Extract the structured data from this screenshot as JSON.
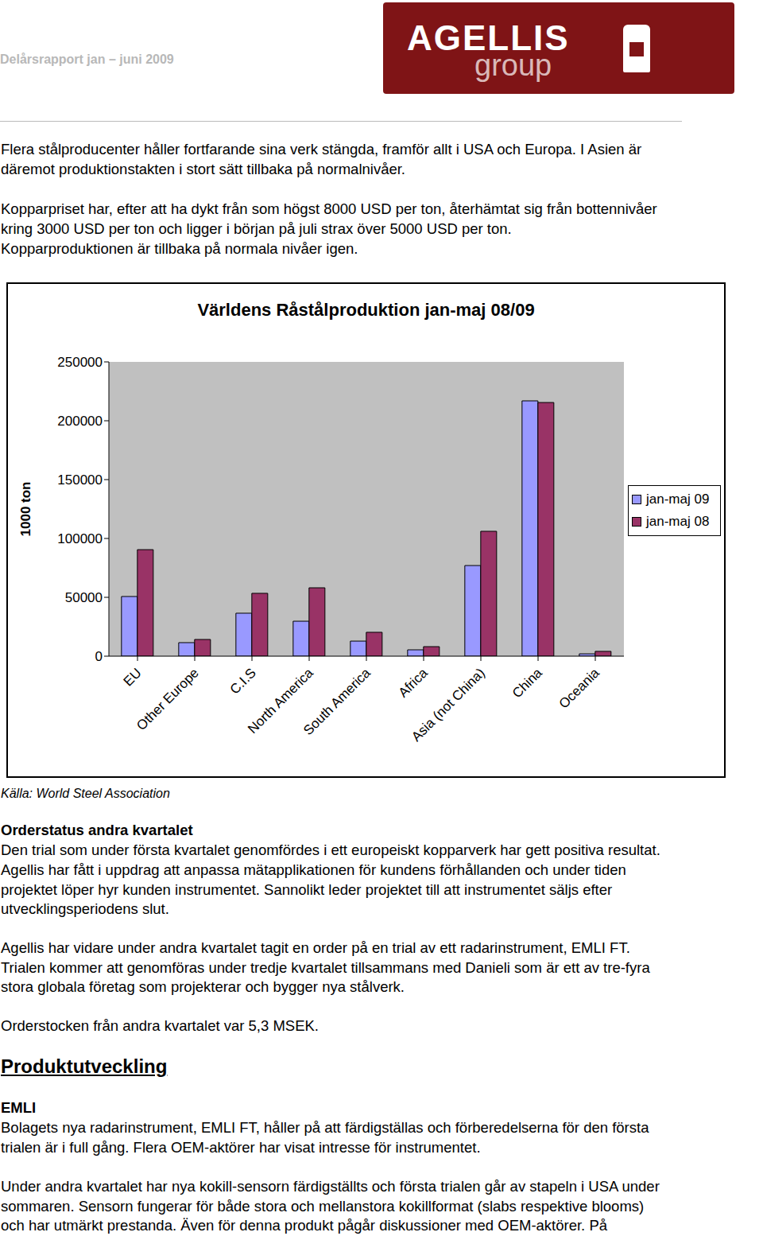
{
  "header": {
    "title": "Delårsrapport jan – juni 2009",
    "logo": {
      "name": "AGELLIS",
      "sub": "group"
    }
  },
  "intro_paragraphs": [
    [
      "Flera stålproducenter håller fortfarande sina verk stängda, framför allt i USA och Europa. I Asien är",
      "däremot produktionstakten i stort sätt tillbaka på normalnivåer."
    ],
    [
      "Kopparpriset har, efter att ha dykt från som högst 8000 USD per ton, återhämtat sig från bottennivåer",
      "kring 3000 USD per ton och ligger i början på juli strax över 5000 USD per ton.",
      "Kopparproduktionen är tillbaka på normala nivåer igen."
    ]
  ],
  "chart_data": {
    "type": "bar",
    "title": "Världens Råstålproduktion jan-maj 08/09",
    "y_label": "1000 ton",
    "categories": [
      "EU",
      "Other Europe",
      "C.I.S",
      "North America",
      "South America",
      "Africa",
      "Asia (not China)",
      "China",
      "Oceania"
    ],
    "series": [
      {
        "name": "jan-maj 09",
        "color": "#9999ff",
        "values": [
          50700,
          11500,
          36500,
          29700,
          12800,
          5400,
          77000,
          216900,
          2000
        ]
      },
      {
        "name": "jan-maj 08",
        "color": "#993366",
        "values": [
          90500,
          14200,
          53400,
          58100,
          20300,
          8100,
          106100,
          215500,
          4100
        ]
      }
    ],
    "ylim": [
      0,
      250000
    ],
    "yticks": [
      0,
      50000,
      100000,
      150000,
      200000,
      250000
    ],
    "grid": false,
    "legend": "right"
  },
  "source": "Källa: World Steel Association",
  "order_heading": "Orderstatus andra kvartalet",
  "order_paragraphs": [
    [
      "Den trial som under första kvartalet genomfördes i ett europeiskt kopparverk har gett positiva resultat.",
      "Agellis har fått i uppdrag att anpassa mätapplikationen för kundens förhållanden och under tiden",
      "projektet löper hyr kunden instrumentet. Sannolikt leder projektet till att instrumentet säljs efter",
      "utvecklingsperiodens slut."
    ],
    [
      "Agellis har vidare under andra kvartalet tagit en order på en trial av ett radarinstrument, EMLI FT.",
      "Trialen kommer att genomföras under tredje kvartalet tillsammans med Danieli som är ett av tre-fyra",
      "stora globala företag som projekterar och bygger nya stålverk."
    ],
    [
      "Orderstocken från andra kvartalet var 5,3 MSEK."
    ]
  ],
  "product_heading": "Produktutveckling",
  "emli_heading": "EMLI",
  "emli_paragraphs": [
    [
      "Bolagets nya radarinstrument, EMLI FT, håller på att färdigställas och förberedelserna för den första",
      "trialen är i full gång. Flera OEM-aktörer har visat intresse för instrumentet."
    ],
    [
      "Under andra kvartalet har nya kokill-sensorn färdigställts och första trialen går av stapeln i USA under",
      "sommaren. Sensorn fungerar för både stora och mellanstora kokillformat (slabs respektive blooms)",
      "och har utmärkt prestanda. Även för denna produkt pågår diskussioner med OEM-aktörer. På"
    ]
  ]
}
